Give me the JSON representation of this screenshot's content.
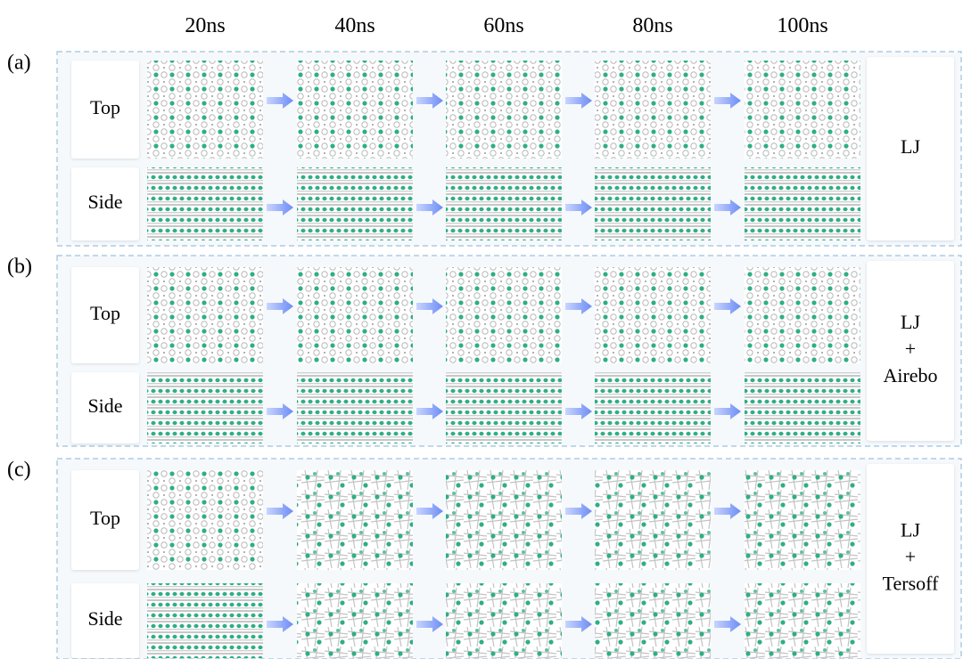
{
  "columns": [
    "20ns",
    "40ns",
    "60ns",
    "80ns",
    "100ns"
  ],
  "panels": [
    {
      "label": "(a)",
      "rows": [
        "Top",
        "Side"
      ],
      "model": [
        "LJ"
      ]
    },
    {
      "label": "(b)",
      "rows": [
        "Top",
        "Side"
      ],
      "model": [
        "LJ",
        "+",
        "Airebo"
      ]
    },
    {
      "label": "(c)",
      "rows": [
        "Top",
        "Side"
      ],
      "model": [
        "LJ",
        "+",
        "Tersoff"
      ]
    }
  ]
}
